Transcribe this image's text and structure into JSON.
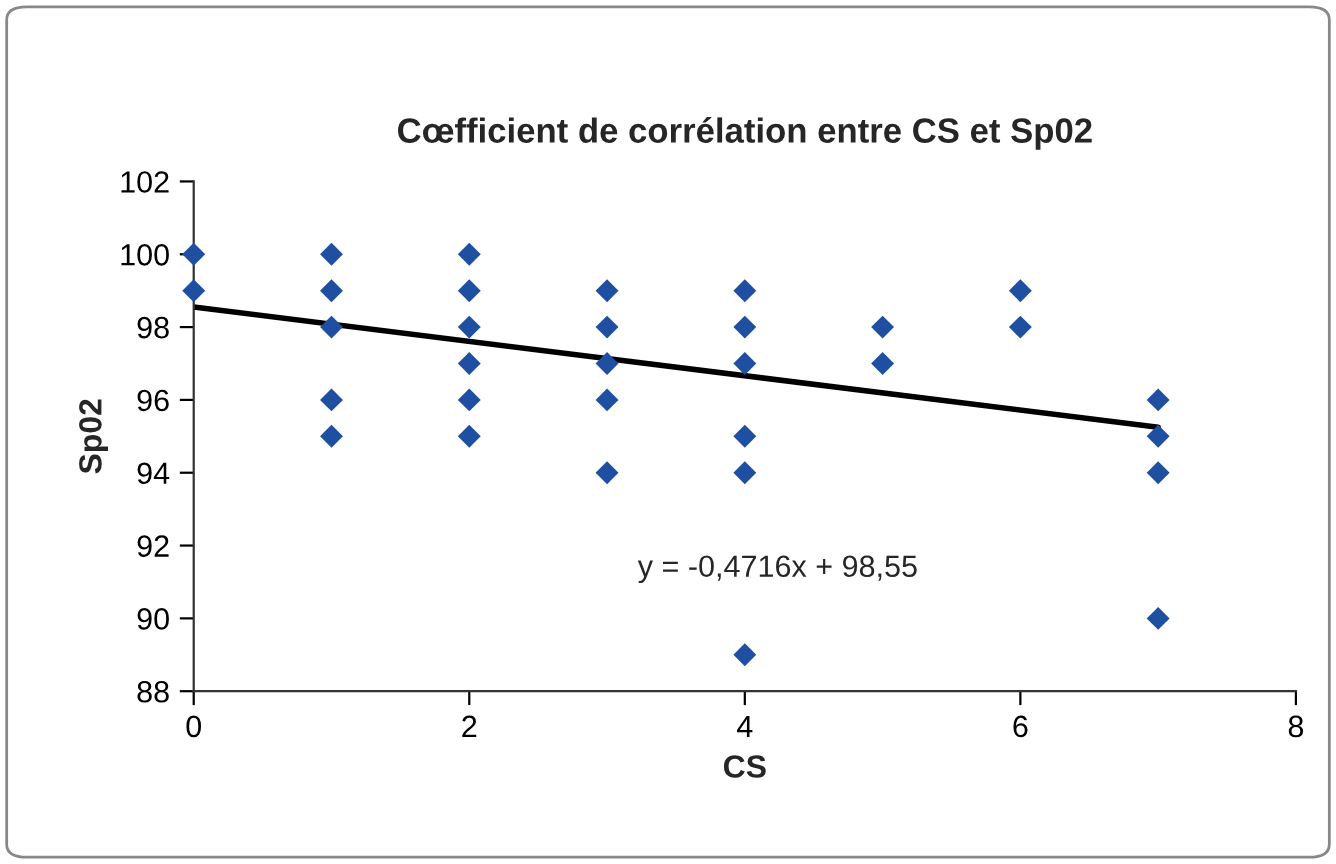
{
  "chart_data": {
    "type": "scatter",
    "title": "Cœfficient de corrélation entre CS et Sp02",
    "xlabel": "CS",
    "ylabel": "Sp02",
    "series": [
      {
        "color": "#1f4fa0",
        "marker": "diamond",
        "x": [
          0,
          0,
          1,
          1,
          1,
          1,
          1,
          2,
          2,
          2,
          2,
          2,
          2,
          3,
          3,
          3,
          3,
          3,
          4,
          4,
          4,
          4,
          4,
          4,
          5,
          5,
          6,
          6,
          7,
          7,
          7,
          7
        ],
        "values": [
          100,
          99,
          100,
          99,
          98,
          96,
          95,
          100,
          99,
          98,
          97,
          96,
          95,
          99,
          98,
          97,
          96,
          94,
          99,
          98,
          97,
          95,
          94,
          89,
          98,
          97,
          99,
          98,
          96,
          95,
          94,
          90
        ]
      },
      {
        "type": "line",
        "color": "#000000",
        "marker": "none",
        "line_style": "solid",
        "x": [
          0,
          7
        ],
        "values": [
          98.55,
          95.25
        ]
      }
    ],
    "annotations": [
      "y = -0,4716x + 98,55"
    ],
    "xlim": [
      0,
      8
    ],
    "xticks": [
      0,
      2,
      4,
      6,
      8
    ],
    "ylim": [
      88,
      102
    ],
    "yticks": [
      88,
      90,
      92,
      94,
      96,
      98,
      100,
      102
    ],
    "grid": false,
    "legend": false
  }
}
